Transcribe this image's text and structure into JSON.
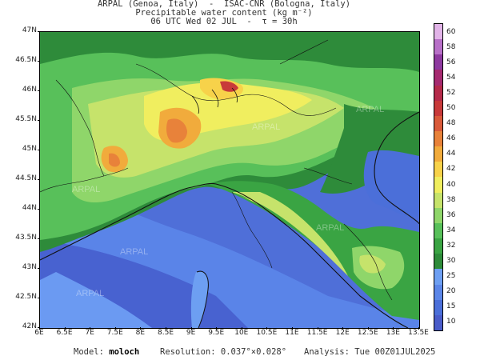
{
  "header": {
    "line1": "ARPAL (Genoa, Italy)  -  ISAC-CNR (Bologna, Italy)",
    "line2": "Precipitable water content (kg m⁻²)",
    "line3": "06 UTC Wed 02 JUL  -  τ = 30h"
  },
  "map": {
    "watermark": "ARPAL",
    "lat_labels": [
      "47N",
      "46.5N",
      "46N",
      "45.5N",
      "45N",
      "44.5N",
      "44N",
      "43.5N",
      "43N",
      "42.5N",
      "42N"
    ],
    "lon_labels": [
      "6E",
      "6.5E",
      "7E",
      "7.5E",
      "8E",
      "8.5E",
      "9E",
      "9.5E",
      "10E",
      "10.5E",
      "11E",
      "11.5E",
      "12E",
      "12.5E",
      "13E",
      "13.5E"
    ]
  },
  "colorbar": {
    "labels": [
      "10",
      "15",
      "20",
      "25",
      "30",
      "32",
      "34",
      "36",
      "38",
      "40",
      "42",
      "44",
      "46",
      "48",
      "50",
      "52",
      "54",
      "56",
      "58",
      "60"
    ],
    "colors": [
      "#4a5cc9",
      "#4b6fd9",
      "#5b86e8",
      "#6d9ff2",
      "#2e8b3a",
      "#3aa443",
      "#58c05a",
      "#8fd66a",
      "#c6e36b",
      "#f0ee5f",
      "#f7d24a",
      "#f1ab3c",
      "#e8823a",
      "#d95a3a",
      "#c83a3a",
      "#b52a4a",
      "#a62a70",
      "#8e3aa0",
      "#b870c8",
      "#e2b4e8"
    ]
  },
  "footer": {
    "model_label": "Model:",
    "model_value": "moloch",
    "resolution_label": "Resolution:",
    "resolution_value": "0.037°×0.028°",
    "analysis_label": "Analysis:",
    "analysis_value": "Tue 00Z01JUL2025"
  }
}
